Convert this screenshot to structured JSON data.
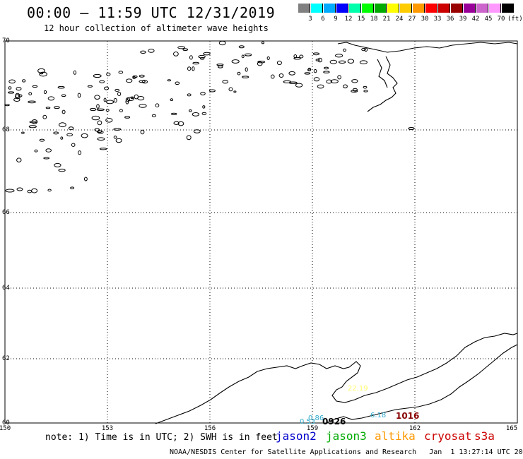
{
  "header": {
    "title": "00:00 – 11:59 UTC 12/31/2019",
    "subtitle": "12 hour collection of altimeter wave heights"
  },
  "scale": {
    "colors": [
      "#808080",
      "#00ffff",
      "#00aaff",
      "#0000ff",
      "#00ffaa",
      "#00ff00",
      "#00aa00",
      "#ffff00",
      "#ffcc00",
      "#ff9900",
      "#ff0000",
      "#cc0000",
      "#990000",
      "#990099",
      "#cc66cc",
      "#ff99ff",
      "#000000"
    ],
    "labels": [
      "3",
      "6",
      "9",
      "12",
      "15",
      "18",
      "21",
      "24",
      "27",
      "30",
      "33",
      "36",
      "39",
      "42",
      "45",
      "70",
      "(ft)"
    ]
  },
  "map": {
    "lat_labels": [
      "70",
      "68",
      "66",
      "64",
      "62",
      "60"
    ],
    "lon_labels": [
      "150",
      "153",
      "156",
      "159",
      "162",
      "165"
    ],
    "observations": [
      {
        "text": "6.18",
        "color": "#33aacc"
      },
      {
        "text": "1016",
        "color": "#880000"
      },
      {
        "text": "0926",
        "color": "#000000"
      },
      {
        "text": "0.86",
        "color": "#33aacc"
      },
      {
        "text": "0.53",
        "color": "#33aacc"
      },
      {
        "text": "22.19",
        "color": "#ffff66"
      }
    ]
  },
  "note": "note: 1) Time is in UTC; 2) SWH is in feet",
  "satellites": [
    {
      "name": "jason2",
      "color": "#0000cc"
    },
    {
      "name": "jason3",
      "color": "#00aa00"
    },
    {
      "name": "altika",
      "color": "#ff9900"
    },
    {
      "name": "cryosat",
      "color": "#cc0000"
    },
    {
      "name": "s3a",
      "color": "#cc0000"
    }
  ],
  "footer": "NOAA/NESDIS Center for Satellite Applications and Research   Jan  1 13:27:14 UTC 2020"
}
